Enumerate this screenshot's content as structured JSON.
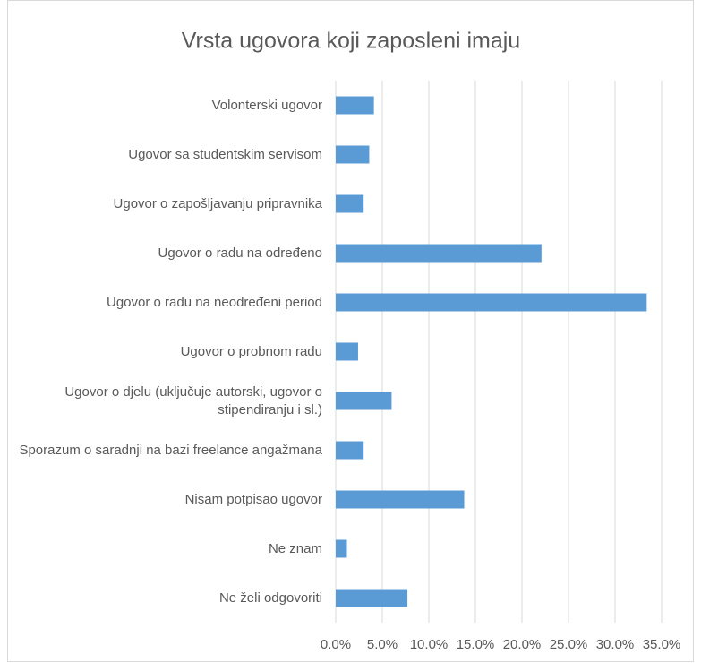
{
  "chart_data": {
    "type": "bar",
    "orientation": "horizontal",
    "title": "Vrsta ugovora koji zaposleni imaju",
    "categories": [
      "Volonterski ugovor",
      "Ugovor sa studentskim servisom",
      "Ugovor o zapošljavanju pripravnika",
      "Ugovor o radu na određeno",
      "Ugovor o radu na neodređeni period",
      "Ugovor o probnom radu",
      "Ugovor o djelu (uključuje autorski, ugovor o stipendiranju i sl.)",
      "Sporazum o saradnji na bazi freelance angažmana",
      "Nisam potpisao ugovor",
      "Ne znam",
      "Ne želi odgovoriti"
    ],
    "values": [
      4.1,
      3.6,
      3.0,
      22.1,
      33.4,
      2.4,
      6.0,
      3.0,
      13.8,
      1.2,
      7.7
    ],
    "color": "#5b9bd5",
    "xlim": [
      0,
      35
    ],
    "xticks": [
      {
        "value": 0,
        "label": "0.0%"
      },
      {
        "value": 5,
        "label": "5.0%"
      },
      {
        "value": 10,
        "label": "10.0%"
      },
      {
        "value": 15,
        "label": "15.0%"
      },
      {
        "value": 20,
        "label": "20.0%"
      },
      {
        "value": 25,
        "label": "25.0%"
      },
      {
        "value": 30,
        "label": "30.0%"
      },
      {
        "value": 35,
        "label": "35.0%"
      }
    ],
    "grid": true
  }
}
